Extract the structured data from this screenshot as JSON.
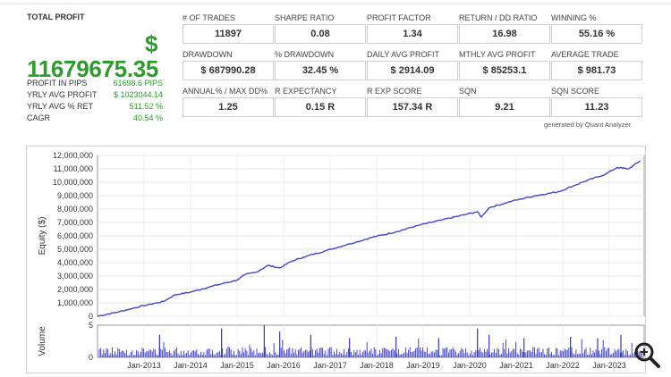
{
  "summary": {
    "total_profit_label": "TOTAL PROFIT",
    "currency_symbol": "$",
    "total_profit_value": "11679675.35",
    "rows": [
      {
        "label": "PROFIT IN PIPS",
        "value": "61698.6 PIPS"
      },
      {
        "label": "YRLY AVG PROFIT",
        "value": "$ 1023044.14"
      },
      {
        "label": "YRLY AVG % RET",
        "value": "511.52 %"
      },
      {
        "label": "CAGR",
        "value": "40.54 %"
      }
    ]
  },
  "metrics": [
    {
      "label": "# OF TRADES",
      "value": "11897"
    },
    {
      "label": "SHARPE RATIO",
      "value": "0.08"
    },
    {
      "label": "PROFIT FACTOR",
      "value": "1.34"
    },
    {
      "label": "RETURN / DD RATIO",
      "value": "16.98"
    },
    {
      "label": "WINNING %",
      "value": "55.16 %"
    },
    {
      "label": "DRAWDOWN",
      "value": "$ 687990.28"
    },
    {
      "label": "% DRAWDOWN",
      "value": "32.45 %"
    },
    {
      "label": "DAILY AVG PROFIT",
      "value": "$ 2914.09"
    },
    {
      "label": "MTHLY AVG PROFIT",
      "value": "$ 85253.1"
    },
    {
      "label": "AVERAGE TRADE",
      "value": "$ 981.73"
    },
    {
      "label": "ANNUAL% / MAX DD%",
      "value": "1.25"
    },
    {
      "label": "R EXPECTANCY",
      "value": "0.15 R"
    },
    {
      "label": "R EXP SCORE",
      "value": "157.34 R"
    },
    {
      "label": "SQN",
      "value": "9.21"
    },
    {
      "label": "SQN SCORE",
      "value": "11.23"
    }
  ],
  "generated_by": "generated by Quant Analyzer",
  "chart_data": [
    {
      "type": "line",
      "ylabel": "Equity ($)",
      "ylim": [
        0,
        12000000
      ],
      "yticks": [
        "0",
        "1,000,000",
        "2,000,000",
        "3,000,000",
        "4,000,000",
        "5,000,000",
        "6,000,000",
        "7,000,000",
        "8,000,000",
        "9,000,000",
        "10,000,000",
        "11,000,000",
        "12,000,000"
      ],
      "xticks": [
        "Jan-2013",
        "Jan-2014",
        "Jan-2015",
        "Jan-2016",
        "Jan-2017",
        "Jan-2018",
        "Jan-2019",
        "Jan-2020",
        "Jan-2021",
        "Jan-2022",
        "Jan-2023"
      ],
      "grid": true,
      "color": "#4444cc",
      "series": [
        {
          "x": [
            "2012-01",
            "2012-06",
            "2013-01",
            "2013-06",
            "2013-09",
            "2014-01",
            "2014-06",
            "2015-01",
            "2015-03",
            "2015-06",
            "2015-09",
            "2015-12",
            "2016-03",
            "2016-06",
            "2016-12",
            "2017-06",
            "2017-12",
            "2018-06",
            "2018-12",
            "2019-06",
            "2019-12",
            "2020-03",
            "2020-04",
            "2020-06",
            "2020-12",
            "2021-06",
            "2021-12",
            "2022-06",
            "2022-12",
            "2023-03",
            "2023-06",
            "2023-09"
          ],
          "values": [
            0,
            300000,
            800000,
            1100000,
            1600000,
            1800000,
            2200000,
            2700000,
            3100000,
            3300000,
            3800000,
            3600000,
            4100000,
            4400000,
            4900000,
            5400000,
            5900000,
            6300000,
            6800000,
            7200000,
            7600000,
            7800000,
            7400000,
            8100000,
            8600000,
            9000000,
            9300000,
            10000000,
            10600000,
            11100000,
            11000000,
            11600000
          ]
        }
      ]
    },
    {
      "type": "bar",
      "ylabel": "Volume",
      "ylim": [
        0,
        5
      ],
      "yticks": [
        "0",
        "5"
      ],
      "color": "#3333cc",
      "spikes": [
        {
          "x": "2013-05",
          "value": 3.5
        },
        {
          "x": "2014-09",
          "value": 4.5
        },
        {
          "x": "2015-08",
          "value": 5.0
        },
        {
          "x": "2015-12",
          "value": 4.0
        },
        {
          "x": "2016-08",
          "value": 3.5
        },
        {
          "x": "2017-06",
          "value": 3.0
        },
        {
          "x": "2018-06",
          "value": 3.2
        },
        {
          "x": "2019-05",
          "value": 3.0
        },
        {
          "x": "2020-03",
          "value": 4.5
        },
        {
          "x": "2020-06",
          "value": 3.5
        },
        {
          "x": "2021-03",
          "value": 3.0
        },
        {
          "x": "2022-03",
          "value": 3.2
        },
        {
          "x": "2022-10",
          "value": 3.0
        },
        {
          "x": "2023-04",
          "value": 3.5
        }
      ]
    }
  ],
  "icons": {
    "zoom": "magnifier-zoom-icon"
  }
}
